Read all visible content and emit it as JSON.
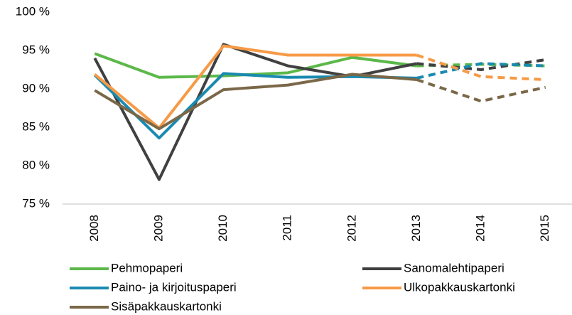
{
  "chart_data": {
    "type": "line",
    "categories": [
      "2008",
      "2009",
      "2010",
      "2011",
      "2012",
      "2013",
      "2014",
      "2015"
    ],
    "series": [
      {
        "name": "Pehmopaperi",
        "color": "#5cb84a",
        "values": [
          94.6,
          91.5,
          91.7,
          92.1,
          94.1,
          93.0,
          93.2,
          93.0
        ]
      },
      {
        "name": "Sanomalehtipaperi",
        "color": "#404040",
        "values": [
          94.0,
          78.2,
          95.8,
          93.0,
          91.6,
          93.3,
          92.5,
          93.8
        ]
      },
      {
        "name": "Paino- ja kirjoituspaperi",
        "color": "#1a8ab0",
        "values": [
          91.8,
          83.6,
          92.0,
          91.5,
          91.6,
          91.4,
          93.3,
          93.0
        ]
      },
      {
        "name": "Ulkopakkauskartonki",
        "color": "#f79a46",
        "values": [
          91.9,
          84.9,
          95.6,
          94.4,
          94.4,
          94.4,
          91.6,
          91.2
        ]
      },
      {
        "name": "Sisäpakkauskartonki",
        "color": "#7a6848",
        "values": [
          89.8,
          84.8,
          89.9,
          90.5,
          91.9,
          91.2,
          88.4,
          90.2
        ]
      }
    ],
    "dashed_from_index": 5,
    "ylim": [
      75,
      100
    ],
    "yticks": [
      {
        "value": 75,
        "label": "75 %"
      },
      {
        "value": 80,
        "label": "80 %"
      },
      {
        "value": 85,
        "label": "85 %"
      },
      {
        "value": 90,
        "label": "90 %"
      },
      {
        "value": 95,
        "label": "95 %"
      },
      {
        "value": 100,
        "label": "100 %"
      }
    ],
    "grid": false,
    "legend": "bottom"
  }
}
